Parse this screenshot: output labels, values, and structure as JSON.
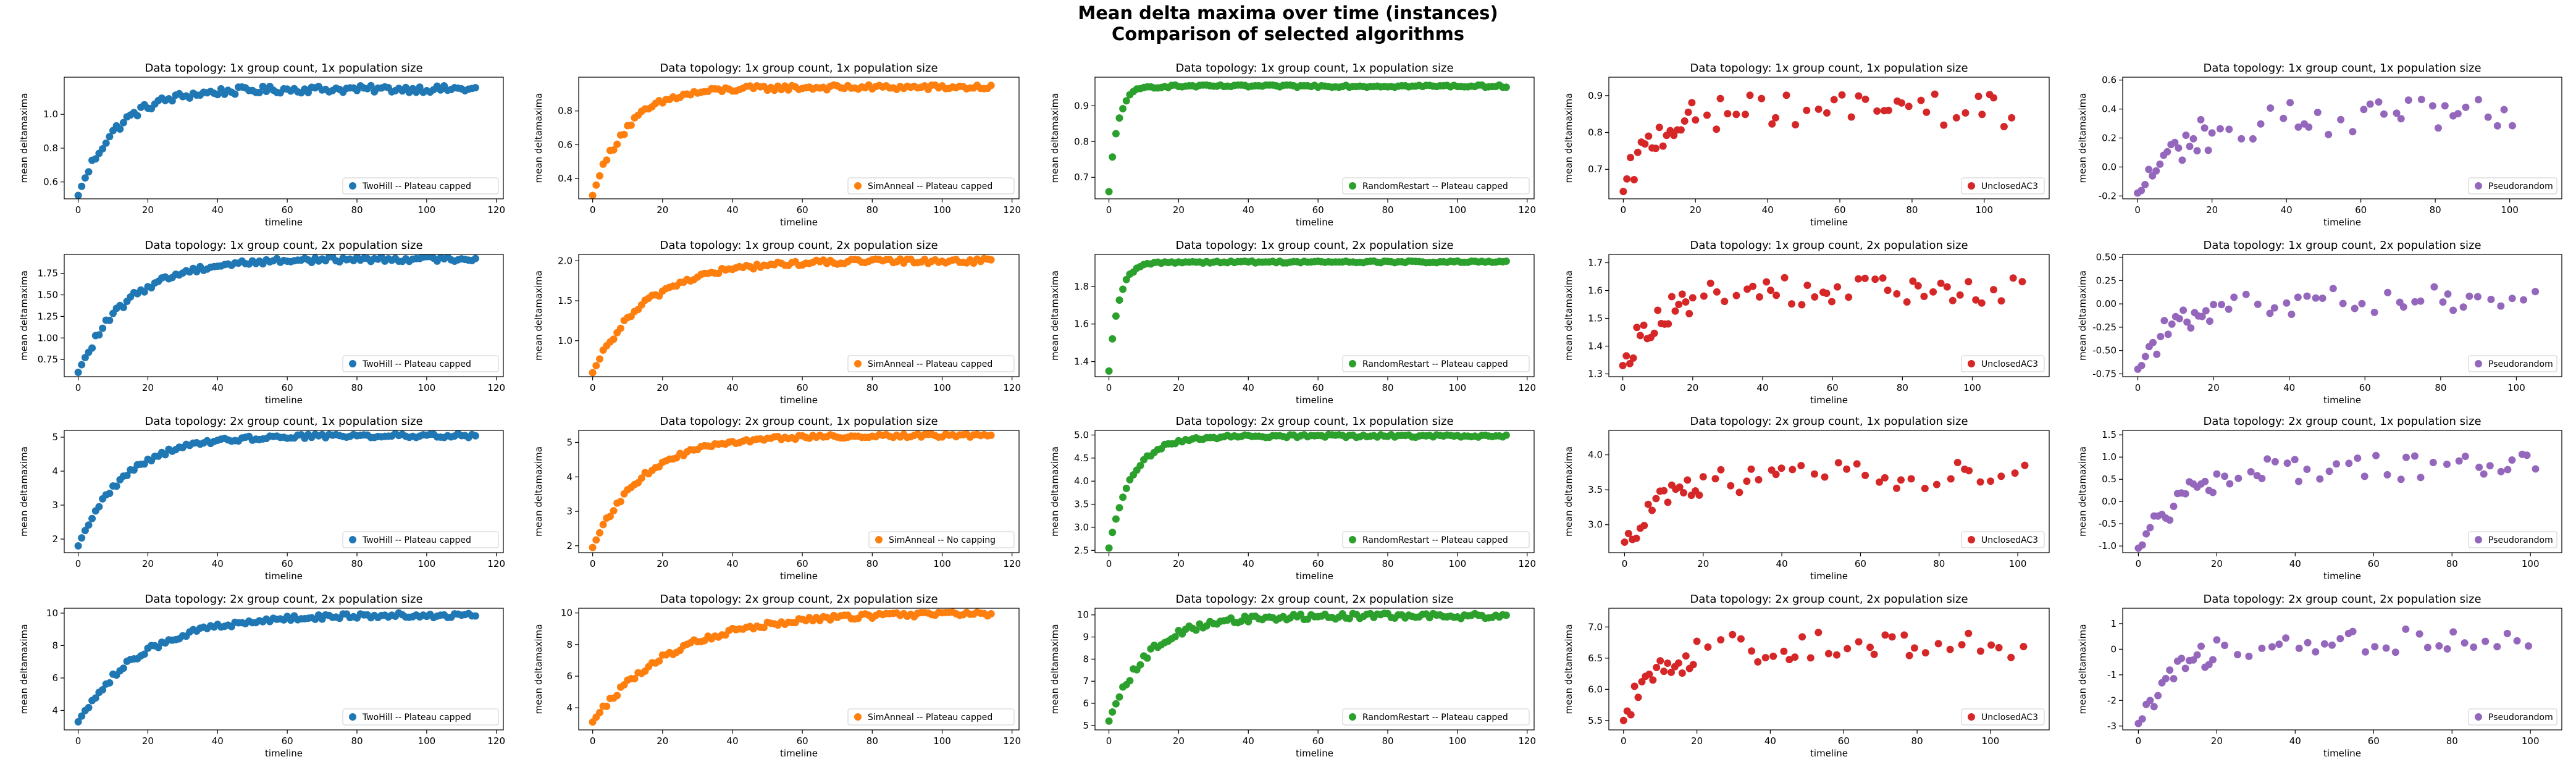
{
  "figure": {
    "title_line1": "Mean delta maxima over time (instances)",
    "title_line2": "Comparison of selected algorithms"
  },
  "colors": {
    "TwoHill": "#1f77b4",
    "SimAnneal": "#ff7f0e",
    "RandomRestart": "#2ca02c",
    "UnclosedAC3": "#d62728",
    "Pseudorandom": "#9467bd"
  },
  "chart_data": [
    {
      "type": "scatter",
      "title": "Data topology: 1x group count, 1x population size",
      "xlabel": "timeline",
      "ylabel": "mean deltamaxima",
      "series_name": "TwoHill -- Plateau capped",
      "color": "#1f77b4",
      "legend": "bottom-right",
      "xlim": [
        -4,
        122
      ],
      "ylim": [
        0.5,
        1.22
      ],
      "xticks": [
        0,
        20,
        40,
        60,
        80,
        100,
        120
      ],
      "yticks": [
        0.6,
        0.8,
        1.0
      ],
      "yfmt": 1,
      "curve": {
        "kind": "exp",
        "n": 115,
        "y0": 0.52,
        "ymax": 1.15,
        "k": 0.09,
        "noise": 0.02
      }
    },
    {
      "type": "scatter",
      "title": "Data topology: 1x group count, 1x population size",
      "xlabel": "timeline",
      "ylabel": "mean deltamaxima",
      "series_name": "SimAnneal -- Plateau capped",
      "color": "#ff7f0e",
      "legend": "bottom-right",
      "xlim": [
        -4,
        122
      ],
      "ylim": [
        0.28,
        1.0
      ],
      "xticks": [
        0,
        20,
        40,
        60,
        80,
        100,
        120
      ],
      "yticks": [
        0.4,
        0.6,
        0.8
      ],
      "yfmt": 1,
      "curve": {
        "kind": "exp",
        "n": 115,
        "y0": 0.3,
        "ymax": 0.94,
        "k": 0.1,
        "noise": 0.015
      }
    },
    {
      "type": "scatter",
      "title": "Data topology: 1x group count, 1x population size",
      "xlabel": "timeline",
      "ylabel": "mean deltamaxima",
      "series_name": "RandomRestart -- Plateau capped",
      "color": "#2ca02c",
      "legend": "bottom-right",
      "xlim": [
        -4,
        122
      ],
      "ylim": [
        0.64,
        0.98
      ],
      "xticks": [
        0,
        20,
        40,
        60,
        80,
        100,
        120
      ],
      "yticks": [
        0.7,
        0.8,
        0.9
      ],
      "yfmt": 1,
      "curve": {
        "kind": "exp",
        "n": 115,
        "y0": 0.66,
        "ymax": 0.955,
        "k": 0.4,
        "noise": 0.003
      }
    },
    {
      "type": "scatter",
      "title": "Data topology: 1x group count, 1x population size",
      "xlabel": "timeline",
      "ylabel": "mean deltamaxima",
      "series_name": "UnclosedAC3",
      "color": "#d62728",
      "legend": "bottom-right",
      "xlim": [
        -4,
        118
      ],
      "ylim": [
        0.62,
        0.95
      ],
      "xticks": [
        0,
        20,
        40,
        60,
        80,
        100
      ],
      "yticks": [
        0.7,
        0.8,
        0.9
      ],
      "yfmt": 1,
      "curve": {
        "kind": "sparse",
        "n": 60,
        "xmax": 110,
        "y0": 0.64,
        "ymax": 0.86,
        "k": 0.12,
        "noise": 0.045
      }
    },
    {
      "type": "scatter",
      "title": "Data topology: 1x group count, 1x population size",
      "xlabel": "timeline",
      "ylabel": "mean deltamaxima",
      "series_name": "Pseudorandom",
      "color": "#9467bd",
      "legend": "bottom-right",
      "xlim": [
        -4,
        114
      ],
      "ylim": [
        -0.22,
        0.62
      ],
      "xticks": [
        0,
        20,
        40,
        60,
        80,
        100
      ],
      "yticks": [
        -0.2,
        0.0,
        0.2,
        0.4,
        0.6
      ],
      "yfmt": 1,
      "curve": {
        "kind": "sparse",
        "n": 55,
        "xmax": 108,
        "y0": -0.18,
        "ymax": 0.35,
        "k": 0.08,
        "noise": 0.12
      }
    },
    {
      "type": "scatter",
      "title": "Data topology: 1x group count, 2x population size",
      "xlabel": "timeline",
      "ylabel": "mean deltamaxima",
      "series_name": "TwoHill -- Plateau capped",
      "color": "#1f77b4",
      "legend": "bottom-right",
      "xlim": [
        -4,
        122
      ],
      "ylim": [
        0.55,
        1.97
      ],
      "xticks": [
        0,
        20,
        40,
        60,
        80,
        100,
        120
      ],
      "yticks": [
        0.75,
        1.0,
        1.25,
        1.5,
        1.75
      ],
      "yfmt": 2,
      "curve": {
        "kind": "exp",
        "n": 115,
        "y0": 0.6,
        "ymax": 1.92,
        "k": 0.07,
        "noise": 0.03
      }
    },
    {
      "type": "scatter",
      "title": "Data topology: 1x group count, 2x population size",
      "xlabel": "timeline",
      "ylabel": "mean deltamaxima",
      "series_name": "SimAnneal -- Plateau capped",
      "color": "#ff7f0e",
      "legend": "bottom-right",
      "xlim": [
        -4,
        122
      ],
      "ylim": [
        0.55,
        2.08
      ],
      "xticks": [
        0,
        20,
        40,
        60,
        80,
        100,
        120
      ],
      "yticks": [
        1.0,
        1.5,
        2.0
      ],
      "yfmt": 1,
      "curve": {
        "kind": "exp",
        "n": 115,
        "y0": 0.6,
        "ymax": 2.0,
        "k": 0.065,
        "noise": 0.03
      }
    },
    {
      "type": "scatter",
      "title": "Data topology: 1x group count, 2x population size",
      "xlabel": "timeline",
      "ylabel": "mean deltamaxima",
      "series_name": "RandomRestart -- Plateau capped",
      "color": "#2ca02c",
      "legend": "bottom-right",
      "xlim": [
        -4,
        122
      ],
      "ylim": [
        1.32,
        1.97
      ],
      "xticks": [
        0,
        20,
        40,
        60,
        80,
        100,
        120
      ],
      "yticks": [
        1.4,
        1.6,
        1.8
      ],
      "yfmt": 1,
      "curve": {
        "kind": "exp",
        "n": 115,
        "y0": 1.35,
        "ymax": 1.93,
        "k": 0.35,
        "noise": 0.005
      }
    },
    {
      "type": "scatter",
      "title": "Data topology: 1x group count, 2x population size",
      "xlabel": "timeline",
      "ylabel": "mean deltamaxima",
      "series_name": "UnclosedAC3",
      "color": "#d62728",
      "legend": "bottom-right",
      "xlim": [
        -4,
        122
      ],
      "ylim": [
        1.29,
        1.73
      ],
      "xticks": [
        0,
        20,
        40,
        60,
        80,
        100
      ],
      "yticks": [
        1.3,
        1.4,
        1.5,
        1.6,
        1.7
      ],
      "yfmt": 1,
      "curve": {
        "kind": "sparse",
        "n": 65,
        "xmax": 115,
        "y0": 1.33,
        "ymax": 1.6,
        "k": 0.1,
        "noise": 0.05
      }
    },
    {
      "type": "scatter",
      "title": "Data topology: 1x group count, 2x population size",
      "xlabel": "timeline",
      "ylabel": "mean deltamaxima",
      "series_name": "Pseudorandom",
      "color": "#9467bd",
      "legend": "bottom-right",
      "xlim": [
        -4,
        112
      ],
      "ylim": [
        -0.78,
        0.53
      ],
      "xticks": [
        0,
        20,
        40,
        60,
        80,
        100
      ],
      "yticks": [
        -0.75,
        -0.5,
        -0.25,
        0.0,
        0.25,
        0.5
      ],
      "yfmt": 2,
      "curve": {
        "kind": "sparse",
        "n": 60,
        "xmax": 106,
        "y0": -0.7,
        "ymax": 0.05,
        "k": 0.1,
        "noise": 0.15
      }
    },
    {
      "type": "scatter",
      "title": "Data topology: 2x group count, 1x population size",
      "xlabel": "timeline",
      "ylabel": "mean deltamaxima",
      "series_name": "TwoHill -- Plateau capped",
      "color": "#1f77b4",
      "legend": "bottom-right",
      "xlim": [
        -4,
        122
      ],
      "ylim": [
        1.6,
        5.2
      ],
      "xticks": [
        0,
        20,
        40,
        60,
        80,
        100,
        120
      ],
      "yticks": [
        2,
        3,
        4,
        5
      ],
      "yfmt": 0,
      "curve": {
        "kind": "exp",
        "n": 115,
        "y0": 1.8,
        "ymax": 5.05,
        "k": 0.075,
        "noise": 0.06
      }
    },
    {
      "type": "scatter",
      "title": "Data topology: 2x group count, 1x population size",
      "xlabel": "timeline",
      "ylabel": "mean deltamaxima",
      "series_name": "SimAnneal -- No capping",
      "color": "#ff7f0e",
      "legend": "bottom-right",
      "xlim": [
        -4,
        122
      ],
      "ylim": [
        1.8,
        5.35
      ],
      "xticks": [
        0,
        20,
        40,
        60,
        80,
        100,
        120
      ],
      "yticks": [
        2,
        3,
        4,
        5
      ],
      "yfmt": 0,
      "curve": {
        "kind": "exp",
        "n": 115,
        "y0": 1.95,
        "ymax": 5.2,
        "k": 0.07,
        "noise": 0.05
      }
    },
    {
      "type": "scatter",
      "title": "Data topology: 2x group count, 1x population size",
      "xlabel": "timeline",
      "ylabel": "mean deltamaxima",
      "series_name": "RandomRestart -- Plateau capped",
      "color": "#2ca02c",
      "legend": "bottom-right",
      "xlim": [
        -4,
        122
      ],
      "ylim": [
        2.45,
        5.1
      ],
      "xticks": [
        0,
        20,
        40,
        60,
        80,
        100,
        120
      ],
      "yticks": [
        2.5,
        3.0,
        3.5,
        4.0,
        4.5,
        5.0
      ],
      "yfmt": 1,
      "curve": {
        "kind": "exp",
        "n": 115,
        "y0": 2.55,
        "ymax": 4.98,
        "k": 0.15,
        "noise": 0.03
      }
    },
    {
      "type": "scatter",
      "title": "Data topology: 2x group count, 1x population size",
      "xlabel": "timeline",
      "ylabel": "mean deltamaxima",
      "series_name": "UnclosedAC3",
      "color": "#d62728",
      "legend": "bottom-right",
      "xlim": [
        -4,
        108
      ],
      "ylim": [
        2.6,
        4.35
      ],
      "xticks": [
        0,
        20,
        40,
        60,
        80,
        100
      ],
      "yticks": [
        3.0,
        3.5,
        4.0
      ],
      "yfmt": 1,
      "curve": {
        "kind": "sparse",
        "n": 60,
        "xmax": 102,
        "y0": 2.75,
        "ymax": 3.7,
        "k": 0.1,
        "noise": 0.2
      }
    },
    {
      "type": "scatter",
      "title": "Data topology: 2x group count, 1x population size",
      "xlabel": "timeline",
      "ylabel": "mean deltamaxima",
      "series_name": "Pseudorandom",
      "color": "#9467bd",
      "legend": "bottom-right",
      "xlim": [
        -4,
        108
      ],
      "ylim": [
        -1.15,
        1.6
      ],
      "xticks": [
        0,
        20,
        40,
        60,
        80,
        100
      ],
      "yticks": [
        -1.0,
        -0.5,
        0.0,
        0.5,
        1.0,
        1.5
      ],
      "yfmt": 1,
      "curve": {
        "kind": "sparse",
        "n": 60,
        "xmax": 102,
        "y0": -1.05,
        "ymax": 0.8,
        "k": 0.08,
        "noise": 0.3
      }
    },
    {
      "type": "scatter",
      "title": "Data topology: 2x group count, 2x population size",
      "xlabel": "timeline",
      "ylabel": "mean deltamaxima",
      "series_name": "TwoHill -- Plateau capped",
      "color": "#1f77b4",
      "legend": "bottom-right",
      "xlim": [
        -4,
        122
      ],
      "ylim": [
        2.8,
        10.3
      ],
      "xticks": [
        0,
        20,
        40,
        60,
        80,
        100,
        120
      ],
      "yticks": [
        4,
        6,
        8,
        10
      ],
      "yfmt": 0,
      "curve": {
        "kind": "exp",
        "n": 115,
        "y0": 3.3,
        "ymax": 9.9,
        "k": 0.055,
        "noise": 0.15
      }
    },
    {
      "type": "scatter",
      "title": "Data topology: 2x group count, 2x population size",
      "xlabel": "timeline",
      "ylabel": "mean deltamaxima",
      "series_name": "SimAnneal -- Plateau capped",
      "color": "#ff7f0e",
      "legend": "bottom-right",
      "xlim": [
        -4,
        122
      ],
      "ylim": [
        2.6,
        10.3
      ],
      "xticks": [
        0,
        20,
        40,
        60,
        80,
        100,
        120
      ],
      "yticks": [
        4,
        6,
        8,
        10
      ],
      "yfmt": 0,
      "curve": {
        "kind": "exp",
        "n": 115,
        "y0": 3.1,
        "ymax": 10.0,
        "k": 0.045,
        "noise": 0.15
      }
    },
    {
      "type": "scatter",
      "title": "Data topology: 2x group count, 2x population size",
      "xlabel": "timeline",
      "ylabel": "mean deltamaxima",
      "series_name": "RandomRestart -- Plateau capped",
      "color": "#2ca02c",
      "legend": "bottom-right",
      "xlim": [
        -4,
        122
      ],
      "ylim": [
        4.8,
        10.3
      ],
      "xticks": [
        0,
        20,
        40,
        60,
        80,
        100,
        120
      ],
      "yticks": [
        5,
        6,
        7,
        8,
        9,
        10
      ],
      "yfmt": 0,
      "curve": {
        "kind": "exp",
        "n": 115,
        "y0": 5.2,
        "ymax": 9.95,
        "k": 0.09,
        "noise": 0.12
      }
    },
    {
      "type": "scatter",
      "title": "Data topology: 2x group count, 2x population size",
      "xlabel": "timeline",
      "ylabel": "mean deltamaxima",
      "series_name": "UnclosedAC3",
      "color": "#d62728",
      "legend": "bottom-right",
      "xlim": [
        -4,
        116
      ],
      "ylim": [
        5.35,
        7.3
      ],
      "xticks": [
        0,
        20,
        40,
        60,
        80,
        100
      ],
      "yticks": [
        5.5,
        6.0,
        6.5,
        7.0
      ],
      "yfmt": 1,
      "curve": {
        "kind": "sparse",
        "n": 60,
        "xmax": 110,
        "y0": 5.5,
        "ymax": 6.7,
        "k": 0.1,
        "noise": 0.25
      }
    },
    {
      "type": "scatter",
      "title": "Data topology: 2x group count, 2x population size",
      "xlabel": "timeline",
      "ylabel": "mean deltamaxima",
      "series_name": "Pseudorandom",
      "color": "#9467bd",
      "legend": "bottom-right",
      "xlim": [
        -4,
        108
      ],
      "ylim": [
        -3.15,
        1.6
      ],
      "xticks": [
        0,
        20,
        40,
        60,
        80,
        100
      ],
      "yticks": [
        -3,
        -2,
        -1,
        0,
        1
      ],
      "yfmt": 0,
      "curve": {
        "kind": "sparse",
        "n": 60,
        "xmax": 102,
        "y0": -2.9,
        "ymax": 0.3,
        "k": 0.1,
        "noise": 0.5
      }
    }
  ]
}
